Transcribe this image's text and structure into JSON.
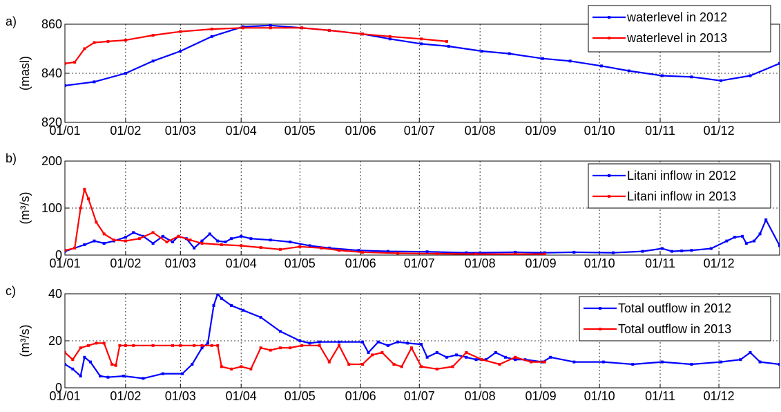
{
  "figure": {
    "x_tick_labels": [
      "01/01",
      "01/02",
      "01/03",
      "01/04",
      "01/05",
      "01/06",
      "01/07",
      "01/08",
      "01/09",
      "01/10",
      "01/11",
      "01/12"
    ],
    "colors": {
      "series_2012": "#0000ff",
      "series_2013": "#ff0000",
      "grid": "#000000"
    }
  },
  "chart_data": [
    {
      "type": "line",
      "panel_label": "a)",
      "ylabel": "(masl)",
      "ylim": [
        820,
        860
      ],
      "yticks": [
        "820",
        "840",
        "860"
      ],
      "xlim": [
        0,
        365
      ],
      "x_unit": "day of year",
      "grid": true,
      "legend_position": "top-right",
      "series": [
        {
          "name": "waterlevel in 2012",
          "color": "#0000ff",
          "x": [
            0,
            15,
            31,
            45,
            59,
            75,
            91,
            105,
            121,
            135,
            152,
            166,
            182,
            196,
            213,
            227,
            244,
            258,
            274,
            288,
            305,
            320,
            335,
            350,
            365
          ],
          "y": [
            835,
            836.5,
            840,
            845,
            849,
            855,
            859,
            859.5,
            858.5,
            857.5,
            856,
            854,
            852,
            851,
            849,
            848,
            846,
            845,
            843,
            841,
            839,
            838.5,
            837,
            839,
            844
          ]
        },
        {
          "name": "waterlevel in 2013",
          "color": "#ff0000",
          "x": [
            0,
            5,
            10,
            15,
            22,
            31,
            45,
            59,
            75,
            91,
            105,
            121,
            135,
            152,
            166,
            182,
            195
          ],
          "y": [
            844,
            844.5,
            850,
            852.5,
            853,
            853.5,
            855.5,
            857,
            858,
            858.5,
            858.5,
            858.5,
            857.5,
            856,
            855,
            854,
            853
          ]
        }
      ]
    },
    {
      "type": "line",
      "panel_label": "b)",
      "ylabel": "(m³/s)",
      "ylim": [
        0,
        200
      ],
      "yticks": [
        "0",
        "100",
        "200"
      ],
      "xlim": [
        0,
        365
      ],
      "x_unit": "day of year",
      "grid": true,
      "legend_position": "top-right",
      "series": [
        {
          "name": "Litani inflow in 2012",
          "color": "#0000ff",
          "x": [
            0,
            10,
            15,
            20,
            25,
            31,
            35,
            40,
            45,
            50,
            55,
            58,
            62,
            66,
            70,
            74,
            78,
            82,
            85,
            90,
            95,
            105,
            115,
            125,
            135,
            150,
            165,
            185,
            205,
            230,
            245,
            260,
            280,
            295,
            305,
            310,
            315,
            320,
            330,
            338,
            342,
            346,
            348,
            352,
            355,
            358,
            365
          ],
          "y": [
            8,
            22,
            30,
            25,
            30,
            38,
            48,
            40,
            25,
            40,
            28,
            40,
            35,
            15,
            30,
            45,
            30,
            28,
            35,
            40,
            35,
            32,
            28,
            20,
            15,
            10,
            8,
            7,
            5,
            6,
            5,
            6,
            5,
            8,
            14,
            8,
            9,
            10,
            14,
            30,
            38,
            40,
            25,
            30,
            45,
            75,
            20
          ]
        },
        {
          "name": "Litani inflow in 2013",
          "color": "#ff0000",
          "x": [
            0,
            5,
            8,
            10,
            12,
            16,
            20,
            25,
            31,
            38,
            45,
            52,
            58,
            64,
            70,
            80,
            90,
            100,
            110,
            120,
            131,
            140,
            152,
            170,
            190,
            210,
            230,
            245
          ],
          "y": [
            10,
            15,
            100,
            140,
            120,
            70,
            45,
            32,
            30,
            35,
            48,
            28,
            40,
            32,
            25,
            22,
            20,
            16,
            12,
            18,
            15,
            10,
            6,
            4,
            3,
            2,
            2,
            2
          ]
        }
      ]
    },
    {
      "type": "line",
      "panel_label": "c)",
      "ylabel": "(m³/s)",
      "ylim": [
        0,
        40
      ],
      "yticks": [
        "0",
        "20",
        "40"
      ],
      "xlim": [
        0,
        365
      ],
      "x_unit": "day of year",
      "grid": true,
      "legend_position": "top-right",
      "series": [
        {
          "name": "Total outflow in 2012",
          "color": "#0000ff",
          "x": [
            0,
            4,
            8,
            10,
            13,
            18,
            22,
            30,
            40,
            50,
            60,
            65,
            70,
            73,
            76,
            78,
            80,
            85,
            91,
            100,
            110,
            120,
            125,
            130,
            140,
            152,
            155,
            160,
            165,
            170,
            175,
            182,
            185,
            190,
            195,
            200,
            205,
            210,
            215,
            220,
            225,
            230,
            235,
            244,
            248,
            260,
            275,
            290,
            305,
            320,
            335,
            345,
            350,
            355,
            365
          ],
          "y": [
            10,
            8,
            5,
            13,
            11,
            5,
            4.5,
            5,
            4,
            6,
            6,
            10,
            17,
            19,
            35,
            40,
            38,
            35,
            33,
            30,
            24,
            20,
            19,
            19.5,
            19.5,
            19.5,
            15,
            19.5,
            18,
            19.5,
            19,
            18.5,
            13,
            15,
            13,
            14,
            13,
            12,
            12,
            15,
            13,
            12,
            12,
            11,
            13,
            11,
            11,
            10,
            11,
            10,
            11,
            12,
            15,
            11,
            10
          ]
        },
        {
          "name": "Total outflow in 2013",
          "color": "#ff0000",
          "x": [
            0,
            4,
            8,
            12,
            16,
            20,
            24,
            26,
            28,
            31,
            35,
            45,
            55,
            59,
            66,
            70,
            75,
            78,
            80,
            85,
            90,
            95,
            100,
            105,
            110,
            115,
            121,
            130,
            135,
            140,
            145,
            152,
            157,
            162,
            168,
            172,
            177,
            182,
            190,
            198,
            205,
            213,
            222,
            230,
            238,
            245
          ],
          "y": [
            15,
            12,
            17,
            18,
            19,
            19,
            10,
            9.5,
            18,
            18,
            18,
            18,
            18,
            18,
            18,
            18,
            18,
            18,
            9,
            8,
            9,
            8,
            17,
            16,
            17,
            17,
            18,
            18,
            11,
            18,
            10,
            10,
            14,
            15,
            10,
            9,
            17,
            9,
            8,
            9,
            15,
            12,
            10,
            13,
            11,
            11
          ]
        }
      ]
    }
  ]
}
